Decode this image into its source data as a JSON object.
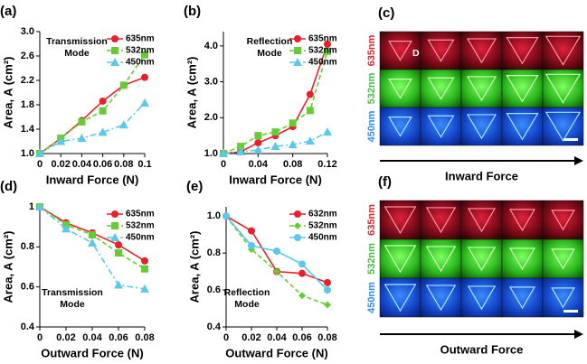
{
  "chart_data": [
    {
      "type": "line",
      "label": "(a)",
      "annotation": [
        "Transmission",
        "Mode"
      ],
      "xlabel": "Inward Force (N)",
      "ylabel": "Area, A (cm²)",
      "x": [
        0,
        0.02,
        0.04,
        0.06,
        0.08,
        0.1
      ],
      "xlim": [
        0,
        0.1
      ],
      "xticks": [
        0,
        0.02,
        0.04,
        0.06,
        0.08,
        0.1
      ],
      "ylim": [
        1.0,
        3.0
      ],
      "yticks": [
        {
          "value": 1.0,
          "label": "1.0"
        },
        1.4,
        1.8,
        2.2,
        2.6,
        {
          "value": 3.0,
          "label": "3.0"
        }
      ],
      "grid": false,
      "legend_loc": "upper right",
      "series": [
        {
          "name": "635nm",
          "color": "#e8202a",
          "marker": "circle",
          "linestyle": "solid",
          "values": [
            1.0,
            1.25,
            1.54,
            1.86,
            2.12,
            2.25
          ]
        },
        {
          "name": "532nm",
          "color": "#66cc33",
          "marker": "square",
          "linestyle": "dashed",
          "values": [
            1.0,
            1.25,
            1.52,
            1.7,
            2.12,
            2.62
          ]
        },
        {
          "name": "450nm",
          "color": "#5bc8e8",
          "marker": "triangle",
          "linestyle": "dashdot",
          "values": [
            1.0,
            1.2,
            1.25,
            1.35,
            1.47,
            1.83
          ]
        }
      ]
    },
    {
      "type": "line",
      "label": "(b)",
      "annotation": [
        "Reflection",
        "Mode"
      ],
      "xlabel": "Inward Force (N)",
      "ylabel": "Area, A (cm²)",
      "x": [
        0,
        0.02,
        0.04,
        0.06,
        0.08,
        0.1,
        0.12
      ],
      "xlim": [
        0,
        0.12
      ],
      "xticks": [
        0,
        0.04,
        0.08,
        0.12
      ],
      "ylim": [
        1.0,
        4.4
      ],
      "yticks": [
        {
          "value": 1.0,
          "label": "1.0"
        },
        {
          "value": 2.0,
          "label": "2.0"
        },
        {
          "value": 3.0,
          "label": "3.0"
        },
        {
          "value": 4.0,
          "label": "4.0"
        }
      ],
      "grid": false,
      "legend_loc": "upper right",
      "series": [
        {
          "name": "635nm",
          "color": "#e8202a",
          "marker": "circle",
          "linestyle": "solid",
          "values": [
            1.0,
            1.05,
            1.3,
            1.5,
            1.75,
            2.65,
            4.05
          ]
        },
        {
          "name": "532nm",
          "color": "#66cc33",
          "marker": "square",
          "linestyle": "dashed",
          "values": [
            1.0,
            1.2,
            1.5,
            1.6,
            1.85,
            2.2,
            3.85
          ]
        },
        {
          "name": "450nm",
          "color": "#5bc8e8",
          "marker": "triangle",
          "linestyle": "dashdot",
          "values": [
            1.0,
            1.05,
            1.1,
            1.2,
            1.25,
            1.35,
            1.6
          ]
        }
      ]
    },
    {
      "type": "line",
      "label": "(d)",
      "annotation": [
        "Transmission",
        "Mode"
      ],
      "xlabel": "Outward Force (N)",
      "ylabel": "Area, A (cm²)",
      "x": [
        0,
        0.02,
        0.04,
        0.06,
        0.08
      ],
      "xlim": [
        0,
        0.08
      ],
      "xticks": [
        0,
        0.02,
        0.04,
        0.06,
        0.08
      ],
      "ylim": [
        0.4,
        1.0
      ],
      "yticks": [
        0.4,
        0.6,
        0.8,
        1
      ],
      "grid": false,
      "legend_loc": "upper right",
      "series": [
        {
          "name": "635nm",
          "color": "#e8202a",
          "marker": "circle",
          "linestyle": "solid",
          "values": [
            1.0,
            0.92,
            0.87,
            0.81,
            0.73
          ]
        },
        {
          "name": "532nm",
          "color": "#66cc33",
          "marker": "square",
          "linestyle": "dashed",
          "values": [
            1.0,
            0.91,
            0.86,
            0.77,
            0.69
          ]
        },
        {
          "name": "450nm",
          "color": "#5bc8e8",
          "marker": "triangle",
          "linestyle": "dashdot",
          "values": [
            1.0,
            0.89,
            0.82,
            0.61,
            0.59
          ]
        }
      ]
    },
    {
      "type": "line",
      "label": "(e)",
      "annotation": [
        "Reflection",
        "Mode"
      ],
      "xlabel": "Outward Force (N)",
      "ylabel": "Area, A (cm²)",
      "x": [
        0,
        0.02,
        0.04,
        0.06,
        0.08
      ],
      "xlim": [
        0,
        0.08
      ],
      "xticks": [
        0,
        0.02,
        0.04,
        0.06,
        0.08
      ],
      "ylim": [
        0.4,
        1.05
      ],
      "yticks": [
        0.4,
        0.6,
        0.8,
        {
          "value": 1.0,
          "label": "1.0"
        }
      ],
      "grid": false,
      "legend_loc": "upper right",
      "series": [
        {
          "name": "632nm",
          "color": "#e8202a",
          "marker": "circle",
          "linestyle": "solid",
          "values": [
            1.0,
            0.92,
            0.7,
            0.69,
            0.64
          ]
        },
        {
          "name": "532nm",
          "color": "#66cc33",
          "marker": "diamond",
          "linestyle": "dashed",
          "values": [
            1.0,
            0.82,
            0.7,
            0.57,
            0.52
          ]
        },
        {
          "name": "450nm",
          "color": "#5bc8e8",
          "marker": "circle",
          "linestyle": "solid",
          "values": [
            1.0,
            0.84,
            0.81,
            0.74,
            0.6
          ]
        }
      ]
    }
  ],
  "image_panels": [
    {
      "label": "(c)",
      "rows": [
        "635nm",
        "532nm",
        "450nm"
      ],
      "annotation": "D",
      "arrow_label": "Inward Force"
    },
    {
      "label": "(f)",
      "rows": [
        "635nm",
        "532nm",
        "450nm"
      ],
      "arrow_label": "Outward Force"
    }
  ]
}
